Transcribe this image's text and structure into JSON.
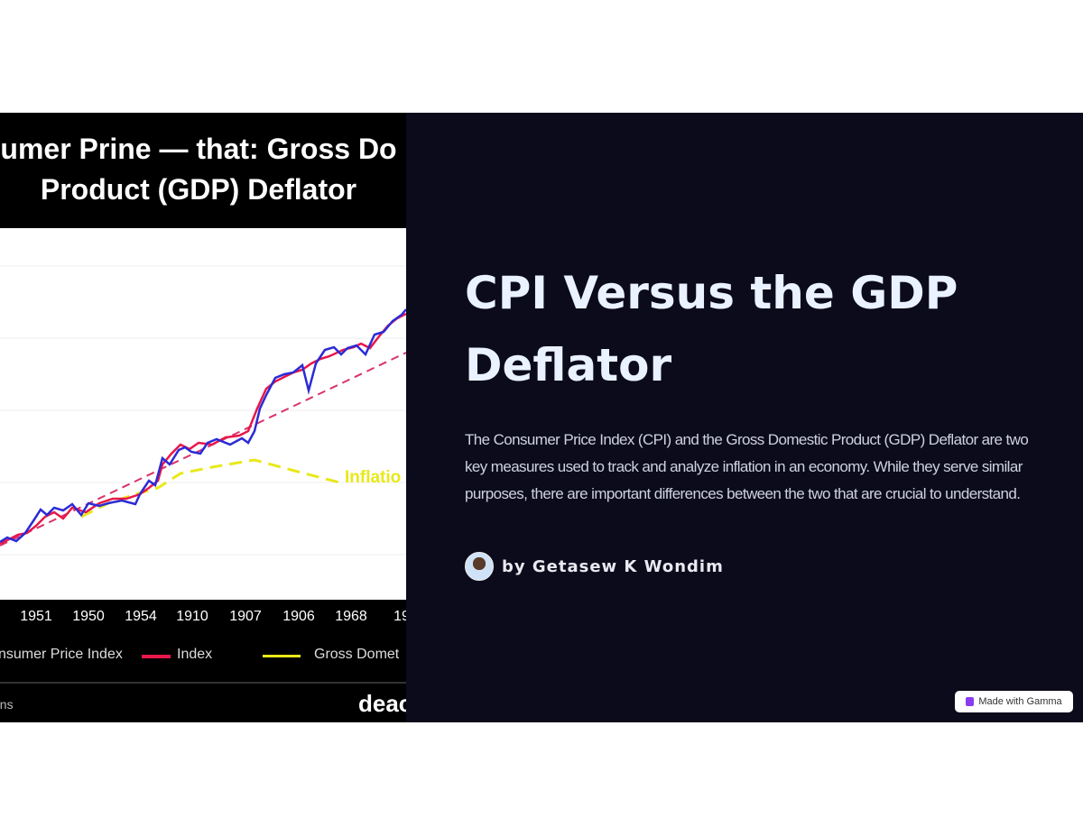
{
  "image": {
    "title_line1": "umer Prine — that: Gross Do",
    "title_line2": "Product (GDP) Deflator",
    "annotation": "Inflatio",
    "x_ticks": [
      "1951",
      "1950",
      "1954",
      "1910",
      "1907",
      "1906",
      "1968",
      "19"
    ],
    "legend": {
      "item1": "nsumer Price Index",
      "item2": "Index",
      "item3": "Gross Domet"
    },
    "footer_left": "ons",
    "footer_logo": "deac",
    "colors": {
      "cpi": "#2b2bd6",
      "index": "#e8174a",
      "gdp": "#e8e81a",
      "trend": "#d8336b"
    }
  },
  "slide": {
    "title": "CPI Versus the GDP Deflator",
    "description": "The Consumer Price Index (CPI) and the Gross Domestic Product (GDP) Deflator are two key measures used to track and analyze inflation in an economy. While they serve similar purposes, there are important differences between the two that are crucial to understand.",
    "byline": "by Getasew K Wondim",
    "badge": "Made with Gamma",
    "background": "#0b0b1c"
  }
}
